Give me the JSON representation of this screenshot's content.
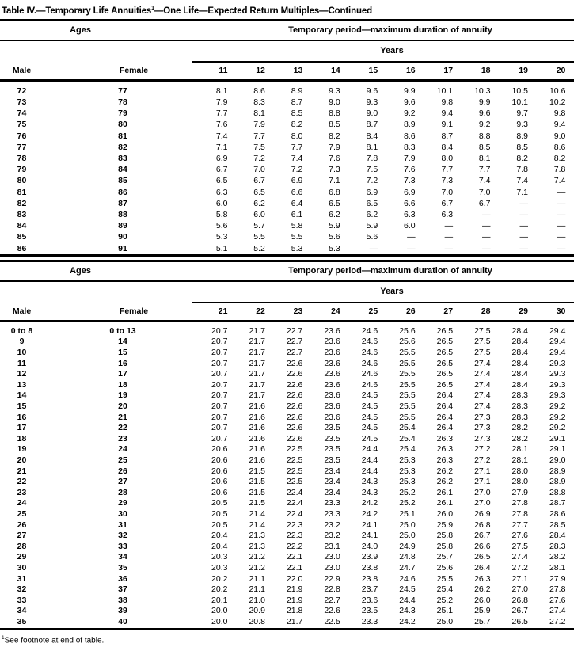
{
  "title": {
    "pre": "Table IV.—Temporary Life Annuities",
    "sup": "1",
    "post": "—One Life—Expected Return Multiples—Continued"
  },
  "footnote": {
    "sup": "1",
    "text": "See footnote at end of table."
  },
  "tables": [
    {
      "header": {
        "ages": "Ages",
        "period": "Temporary period—maximum duration of annuity",
        "years_label": "Years",
        "male": "Male",
        "female": "Female",
        "years": [
          "11",
          "12",
          "13",
          "14",
          "15",
          "16",
          "17",
          "18",
          "19",
          "20"
        ]
      },
      "rows": [
        {
          "male": "72",
          "female": "77",
          "values": [
            "8.1",
            "8.6",
            "8.9",
            "9.3",
            "9.6",
            "9.9",
            "10.1",
            "10.3",
            "10.5",
            "10.6"
          ]
        },
        {
          "male": "73",
          "female": "78",
          "values": [
            "7.9",
            "8.3",
            "8.7",
            "9.0",
            "9.3",
            "9.6",
            "9.8",
            "9.9",
            "10.1",
            "10.2"
          ]
        },
        {
          "male": "74",
          "female": "79",
          "values": [
            "7.7",
            "8.1",
            "8.5",
            "8.8",
            "9.0",
            "9.2",
            "9.4",
            "9.6",
            "9.7",
            "9.8"
          ]
        },
        {
          "male": "75",
          "female": "80",
          "values": [
            "7.6",
            "7.9",
            "8.2",
            "8.5",
            "8.7",
            "8.9",
            "9.1",
            "9.2",
            "9.3",
            "9.4"
          ]
        },
        {
          "male": "76",
          "female": "81",
          "values": [
            "7.4",
            "7.7",
            "8.0",
            "8.2",
            "8.4",
            "8.6",
            "8.7",
            "8.8",
            "8.9",
            "9.0"
          ]
        },
        {
          "male": "77",
          "female": "82",
          "values": [
            "7.1",
            "7.5",
            "7.7",
            "7.9",
            "8.1",
            "8.3",
            "8.4",
            "8.5",
            "8.5",
            "8.6"
          ]
        },
        {
          "male": "78",
          "female": "83",
          "values": [
            "6.9",
            "7.2",
            "7.4",
            "7.6",
            "7.8",
            "7.9",
            "8.0",
            "8.1",
            "8.2",
            "8.2"
          ]
        },
        {
          "male": "79",
          "female": "84",
          "values": [
            "6.7",
            "7.0",
            "7.2",
            "7.3",
            "7.5",
            "7.6",
            "7.7",
            "7.7",
            "7.8",
            "7.8"
          ]
        },
        {
          "male": "80",
          "female": "85",
          "values": [
            "6.5",
            "6.7",
            "6.9",
            "7.1",
            "7.2",
            "7.3",
            "7.3",
            "7.4",
            "7.4",
            "7.4"
          ]
        },
        {
          "male": "81",
          "female": "86",
          "values": [
            "6.3",
            "6.5",
            "6.6",
            "6.8",
            "6.9",
            "6.9",
            "7.0",
            "7.0",
            "7.1",
            "—"
          ]
        },
        {
          "male": "82",
          "female": "87",
          "values": [
            "6.0",
            "6.2",
            "6.4",
            "6.5",
            "6.5",
            "6.6",
            "6.7",
            "6.7",
            "—",
            "—"
          ]
        },
        {
          "male": "83",
          "female": "88",
          "values": [
            "5.8",
            "6.0",
            "6.1",
            "6.2",
            "6.2",
            "6.3",
            "6.3",
            "—",
            "—",
            "—"
          ]
        },
        {
          "male": "84",
          "female": "89",
          "values": [
            "5.6",
            "5.7",
            "5.8",
            "5.9",
            "5.9",
            "6.0",
            "—",
            "—",
            "—",
            "—"
          ]
        },
        {
          "male": "85",
          "female": "90",
          "values": [
            "5.3",
            "5.5",
            "5.5",
            "5.6",
            "5.6",
            "—",
            "—",
            "—",
            "—",
            "—"
          ]
        },
        {
          "male": "86",
          "female": "91",
          "values": [
            "5.1",
            "5.2",
            "5.3",
            "5.3",
            "—",
            "—",
            "—",
            "—",
            "—",
            "—"
          ]
        }
      ]
    },
    {
      "header": {
        "ages": "Ages",
        "period": "Temporary period—maximum duration of annuity",
        "years_label": "Years",
        "male": "Male",
        "female": "Female",
        "years": [
          "21",
          "22",
          "23",
          "24",
          "25",
          "26",
          "27",
          "28",
          "29",
          "30"
        ]
      },
      "rows": [
        {
          "male": "0 to 8",
          "female": "0 to 13",
          "values": [
            "20.7",
            "21.7",
            "22.7",
            "23.6",
            "24.6",
            "25.6",
            "26.5",
            "27.5",
            "28.4",
            "29.4"
          ]
        },
        {
          "male": "9",
          "female": "14",
          "values": [
            "20.7",
            "21.7",
            "22.7",
            "23.6",
            "24.6",
            "25.6",
            "26.5",
            "27.5",
            "28.4",
            "29.4"
          ]
        },
        {
          "male": "10",
          "female": "15",
          "values": [
            "20.7",
            "21.7",
            "22.7",
            "23.6",
            "24.6",
            "25.5",
            "26.5",
            "27.5",
            "28.4",
            "29.4"
          ]
        },
        {
          "male": "11",
          "female": "16",
          "values": [
            "20.7",
            "21.7",
            "22.6",
            "23.6",
            "24.6",
            "25.5",
            "26.5",
            "27.4",
            "28.4",
            "29.3"
          ]
        },
        {
          "male": "12",
          "female": "17",
          "values": [
            "20.7",
            "21.7",
            "22.6",
            "23.6",
            "24.6",
            "25.5",
            "26.5",
            "27.4",
            "28.4",
            "29.3"
          ]
        },
        {
          "male": "13",
          "female": "18",
          "values": [
            "20.7",
            "21.7",
            "22.6",
            "23.6",
            "24.6",
            "25.5",
            "26.5",
            "27.4",
            "28.4",
            "29.3"
          ]
        },
        {
          "male": "14",
          "female": "19",
          "values": [
            "20.7",
            "21.7",
            "22.6",
            "23.6",
            "24.5",
            "25.5",
            "26.4",
            "27.4",
            "28.3",
            "29.3"
          ]
        },
        {
          "male": "15",
          "female": "20",
          "values": [
            "20.7",
            "21.6",
            "22.6",
            "23.6",
            "24.5",
            "25.5",
            "26.4",
            "27.4",
            "28.3",
            "29.2"
          ]
        },
        {
          "male": "16",
          "female": "21",
          "values": [
            "20.7",
            "21.6",
            "22.6",
            "23.6",
            "24.5",
            "25.5",
            "26.4",
            "27.3",
            "28.3",
            "29.2"
          ]
        },
        {
          "male": "17",
          "female": "22",
          "values": [
            "20.7",
            "21.6",
            "22.6",
            "23.5",
            "24.5",
            "25.4",
            "26.4",
            "27.3",
            "28.2",
            "29.2"
          ]
        },
        {
          "male": "18",
          "female": "23",
          "values": [
            "20.7",
            "21.6",
            "22.6",
            "23.5",
            "24.5",
            "25.4",
            "26.3",
            "27.3",
            "28.2",
            "29.1"
          ]
        },
        {
          "male": "19",
          "female": "24",
          "values": [
            "20.6",
            "21.6",
            "22.5",
            "23.5",
            "24.4",
            "25.4",
            "26.3",
            "27.2",
            "28.1",
            "29.1"
          ]
        },
        {
          "male": "20",
          "female": "25",
          "values": [
            "20.6",
            "21.6",
            "22.5",
            "23.5",
            "24.4",
            "25.3",
            "26.3",
            "27.2",
            "28.1",
            "29.0"
          ]
        },
        {
          "male": "21",
          "female": "26",
          "values": [
            "20.6",
            "21.5",
            "22.5",
            "23.4",
            "24.4",
            "25.3",
            "26.2",
            "27.1",
            "28.0",
            "28.9"
          ]
        },
        {
          "male": "22",
          "female": "27",
          "values": [
            "20.6",
            "21.5",
            "22.5",
            "23.4",
            "24.3",
            "25.3",
            "26.2",
            "27.1",
            "28.0",
            "28.9"
          ]
        },
        {
          "male": "23",
          "female": "28",
          "values": [
            "20.6",
            "21.5",
            "22.4",
            "23.4",
            "24.3",
            "25.2",
            "26.1",
            "27.0",
            "27.9",
            "28.8"
          ]
        },
        {
          "male": "24",
          "female": "29",
          "values": [
            "20.5",
            "21.5",
            "22.4",
            "23.3",
            "24.2",
            "25.2",
            "26.1",
            "27.0",
            "27.8",
            "28.7"
          ]
        },
        {
          "male": "25",
          "female": "30",
          "values": [
            "20.5",
            "21.4",
            "22.4",
            "23.3",
            "24.2",
            "25.1",
            "26.0",
            "26.9",
            "27.8",
            "28.6"
          ]
        },
        {
          "male": "26",
          "female": "31",
          "values": [
            "20.5",
            "21.4",
            "22.3",
            "23.2",
            "24.1",
            "25.0",
            "25.9",
            "26.8",
            "27.7",
            "28.5"
          ]
        },
        {
          "male": "27",
          "female": "32",
          "values": [
            "20.4",
            "21.3",
            "22.3",
            "23.2",
            "24.1",
            "25.0",
            "25.8",
            "26.7",
            "27.6",
            "28.4"
          ]
        },
        {
          "male": "28",
          "female": "33",
          "values": [
            "20.4",
            "21.3",
            "22.2",
            "23.1",
            "24.0",
            "24.9",
            "25.8",
            "26.6",
            "27.5",
            "28.3"
          ]
        },
        {
          "male": "29",
          "female": "34",
          "values": [
            "20.3",
            "21.2",
            "22.1",
            "23.0",
            "23.9",
            "24.8",
            "25.7",
            "26.5",
            "27.4",
            "28.2"
          ]
        },
        {
          "male": "30",
          "female": "35",
          "values": [
            "20.3",
            "21.2",
            "22.1",
            "23.0",
            "23.8",
            "24.7",
            "25.6",
            "26.4",
            "27.2",
            "28.1"
          ]
        },
        {
          "male": "31",
          "female": "36",
          "values": [
            "20.2",
            "21.1",
            "22.0",
            "22.9",
            "23.8",
            "24.6",
            "25.5",
            "26.3",
            "27.1",
            "27.9"
          ]
        },
        {
          "male": "32",
          "female": "37",
          "values": [
            "20.2",
            "21.1",
            "21.9",
            "22.8",
            "23.7",
            "24.5",
            "25.4",
            "26.2",
            "27.0",
            "27.8"
          ]
        },
        {
          "male": "33",
          "female": "38",
          "values": [
            "20.1",
            "21.0",
            "21.9",
            "22.7",
            "23.6",
            "24.4",
            "25.2",
            "26.0",
            "26.8",
            "27.6"
          ]
        },
        {
          "male": "34",
          "female": "39",
          "values": [
            "20.0",
            "20.9",
            "21.8",
            "22.6",
            "23.5",
            "24.3",
            "25.1",
            "25.9",
            "26.7",
            "27.4"
          ]
        },
        {
          "male": "35",
          "female": "40",
          "values": [
            "20.0",
            "20.8",
            "21.7",
            "22.5",
            "23.3",
            "24.2",
            "25.0",
            "25.7",
            "26.5",
            "27.2"
          ]
        }
      ]
    }
  ]
}
